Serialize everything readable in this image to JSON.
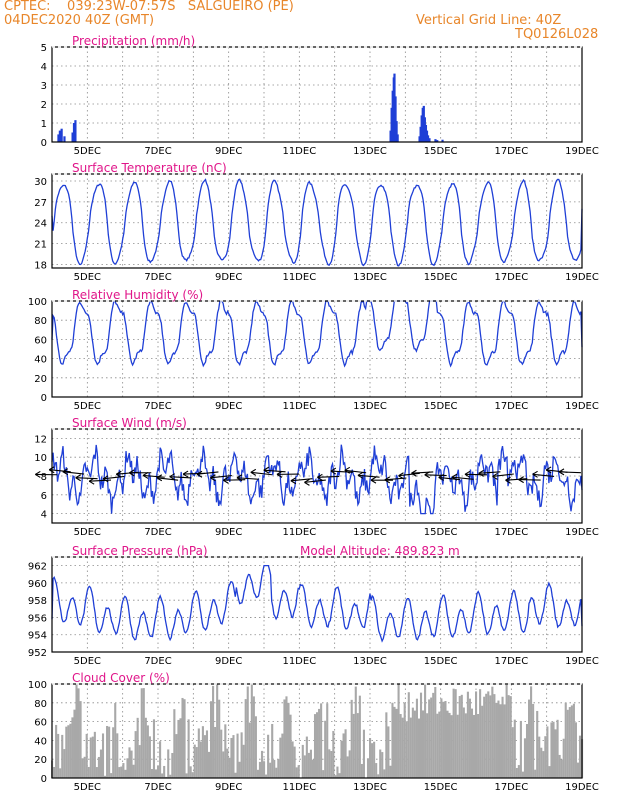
{
  "header": {
    "line1_left": "CPTEC:    039:23W-07:57S   SALGUEIRO (PE)",
    "line2_left": "04DEC2020 40Z (GMT)",
    "line2_right": "Vertical Grid Line: 40Z",
    "line3_right": "TQ0126L028",
    "color": "#e8862a"
  },
  "colors": {
    "title": "#e0168a",
    "line": "#1f3fd6",
    "bar": "#1f3fd6",
    "cloud": "#a8a8a8",
    "wind_arrow": "#000000",
    "grid": "#8a8a8a"
  },
  "x_ticks": [
    "5DEC",
    "7DEC",
    "9DEC",
    "11DEC",
    "13DEC",
    "15DEC",
    "17DEC",
    "19DEC"
  ],
  "x_range_days": [
    4.0,
    19.0
  ],
  "chart_data": [
    {
      "id": "precip",
      "type": "bar",
      "title": "Precipitation (mm/h)",
      "ylim": [
        0,
        5
      ],
      "yticks": [
        0,
        1,
        2,
        3,
        4,
        5
      ],
      "bars": [
        [
          4.18,
          0.4
        ],
        [
          4.22,
          0.6
        ],
        [
          4.27,
          0.7
        ],
        [
          4.35,
          0.3
        ],
        [
          4.58,
          0.5
        ],
        [
          4.62,
          1.0
        ],
        [
          4.66,
          1.15
        ],
        [
          13.58,
          0.6
        ],
        [
          13.61,
          1.8
        ],
        [
          13.64,
          2.7
        ],
        [
          13.67,
          3.4
        ],
        [
          13.69,
          3.6
        ],
        [
          13.72,
          2.4
        ],
        [
          13.75,
          1.1
        ],
        [
          13.78,
          0.4
        ],
        [
          14.4,
          0.3
        ],
        [
          14.43,
          0.8
        ],
        [
          14.46,
          1.4
        ],
        [
          14.49,
          1.8
        ],
        [
          14.52,
          1.9
        ],
        [
          14.55,
          1.3
        ],
        [
          14.58,
          0.9
        ],
        [
          14.61,
          0.6
        ],
        [
          14.64,
          0.35
        ],
        [
          14.68,
          0.2
        ],
        [
          14.85,
          0.15
        ],
        [
          14.9,
          0.1
        ],
        [
          15.05,
          0.12
        ]
      ]
    },
    {
      "id": "temp",
      "type": "line",
      "title": "Surface Temperature (nC)",
      "ylim": [
        17.5,
        31
      ],
      "yticks": [
        18,
        21,
        24,
        27,
        30
      ],
      "series": {
        "kind": "diurnal",
        "mean": 24.0,
        "amp": 5.7,
        "start": 25.0,
        "end": 26.0,
        "shape": 2.8
      }
    },
    {
      "id": "rh",
      "type": "line",
      "title": "Relative Humidity (%)",
      "ylim": [
        0,
        100
      ],
      "yticks": [
        0,
        20,
        40,
        60,
        80,
        100
      ],
      "series": {
        "kind": "rh",
        "start": 60.0,
        "end": 52.0
      }
    },
    {
      "id": "wind",
      "type": "line",
      "title": "Surface Wind (m/s)",
      "ylim": [
        3,
        13
      ],
      "yticks": [
        4,
        6,
        8,
        10,
        12
      ],
      "series": {
        "kind": "wind",
        "mean": 7.8,
        "start": 9.5,
        "end": 6.5
      }
    },
    {
      "id": "pres",
      "type": "line",
      "title": "Surface Pressure (hPa)",
      "extra_label": "Model Altitude: 489.823 m",
      "ylim": [
        952,
        963
      ],
      "yticks": [
        952,
        954,
        956,
        958,
        960,
        962
      ],
      "series": {
        "kind": "semidiurnal",
        "mean": 956.8,
        "start": 955.8,
        "end": 955.0
      }
    },
    {
      "id": "cloud",
      "type": "area",
      "title": "Cloud Cover (%)",
      "ylim": [
        0,
        100
      ],
      "yticks": [
        0,
        20,
        40,
        60,
        80,
        100
      ],
      "series": {
        "kind": "cloud",
        "max_after_13_6": 100
      }
    }
  ]
}
